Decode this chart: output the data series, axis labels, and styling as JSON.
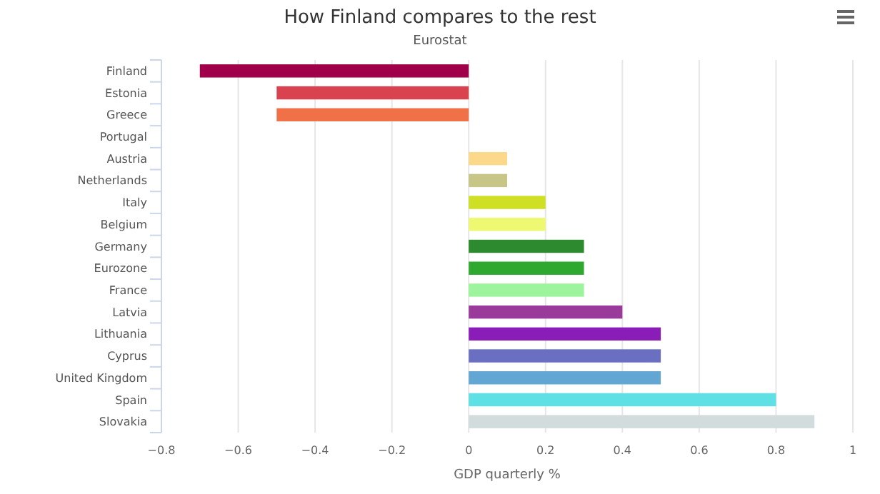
{
  "chart_data": {
    "type": "bar",
    "orientation": "horizontal",
    "title": "How Finland compares to the rest",
    "subtitle": "Eurostat",
    "xlabel": "GDP quarterly %",
    "categories": [
      "Finland",
      "Estonia",
      "Greece",
      "Portugal",
      "Austria",
      "Netherlands",
      "Italy",
      "Belgium",
      "Germany",
      "Eurozone",
      "France",
      "Latvia",
      "Lithuania",
      "Cyprus",
      "United Kingdom",
      "Spain",
      "Slovakia"
    ],
    "values": [
      -0.7,
      -0.5,
      -0.5,
      0,
      0.1,
      0.1,
      0.2,
      0.2,
      0.3,
      0.3,
      0.3,
      0.4,
      0.5,
      0.5,
      0.5,
      0.8,
      0.9
    ],
    "colors": [
      "#a0004a",
      "#d9424f",
      "#f07048",
      "#e8e8e8",
      "#fcd98a",
      "#c8c687",
      "#cfe024",
      "#eef870",
      "#2e8a2e",
      "#2fa82f",
      "#9cf59c",
      "#9a3a9a",
      "#8a1db8",
      "#6a6fc2",
      "#62a6d4",
      "#5ee0e4",
      "#d2dcdc"
    ],
    "xlim": [
      -0.8,
      1
    ],
    "xticks": [
      -0.8,
      -0.6,
      -0.4,
      -0.2,
      0,
      0.2,
      0.4,
      0.6,
      0.8,
      1
    ],
    "grid": "x"
  }
}
